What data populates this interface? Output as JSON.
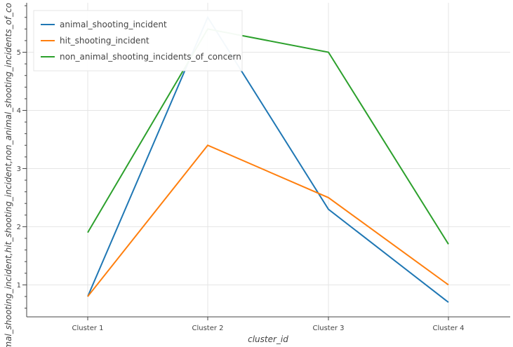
{
  "chart_data": {
    "type": "line",
    "categories": [
      "Cluster 1",
      "Cluster 2",
      "Cluster 3",
      "Cluster 4"
    ],
    "series": [
      {
        "name": "animal_shooting_incident",
        "values": [
          0.8,
          5.6,
          2.3,
          0.7
        ],
        "color": "#1f77b4"
      },
      {
        "name": "hit_shooting_incident",
        "values": [
          0.8,
          3.4,
          2.5,
          1.0
        ],
        "color": "#ff7f0e"
      },
      {
        "name": "non_animal_shooting_incidents_of_concern",
        "values": [
          1.9,
          5.4,
          5.0,
          1.7
        ],
        "color": "#2ca02c"
      }
    ],
    "xlabel": "cluster_id",
    "ylabel": "animal_shooting_incident,hit_shooting_incident,non_animal_shooting_incidents_of_co",
    "yticks": [
      1,
      2,
      3,
      4,
      5
    ],
    "ylim": [
      0.45,
      5.85
    ],
    "grid": true,
    "legend_position": "top-left"
  }
}
